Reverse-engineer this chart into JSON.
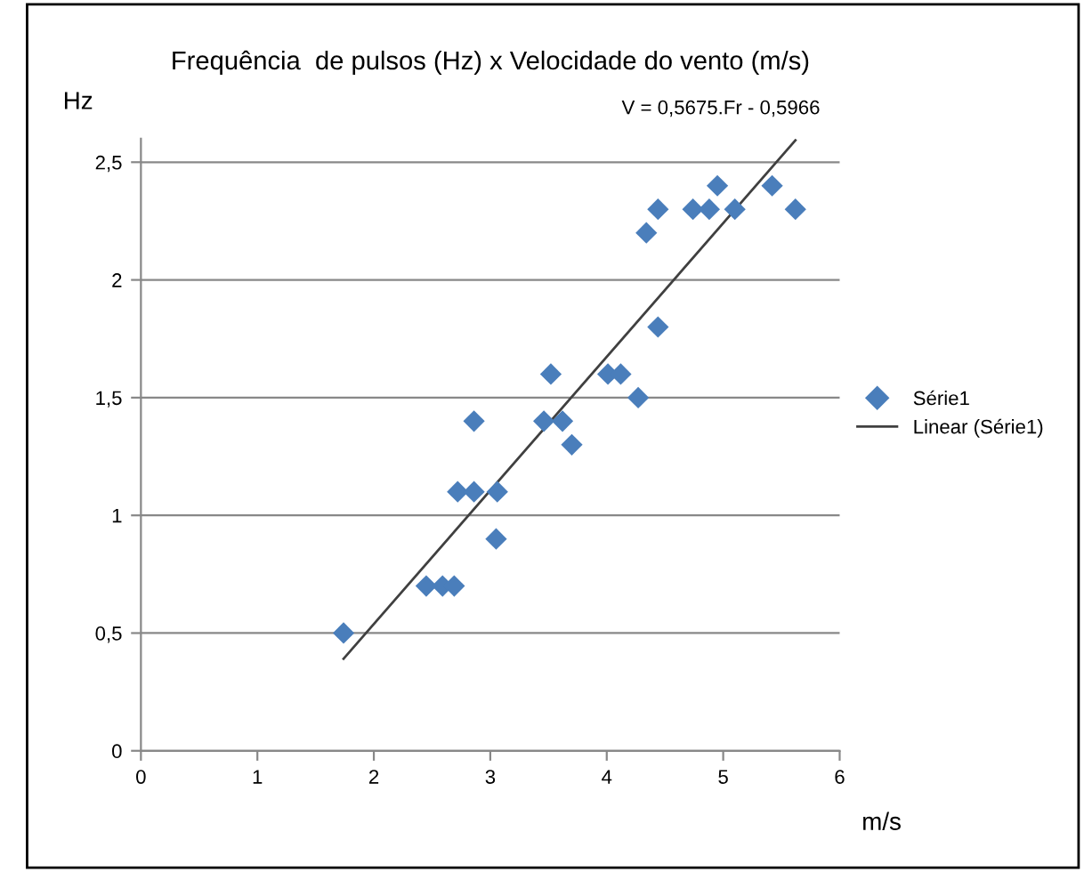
{
  "chart_data": {
    "type": "scatter",
    "title": "Frequência  de pulsos (Hz) x Velocidade do vento (m/s)",
    "xlabel": "m/s",
    "ylabel": "Hz",
    "annotations": [
      "V = 0,5675.Fr - 0,5966"
    ],
    "series": [
      {
        "name": "Série1",
        "color": "#4a7ebb",
        "marker": "diamond",
        "x": [
          1.74,
          2.45,
          2.59,
          2.69,
          2.72,
          2.86,
          2.86,
          3.06,
          3.05,
          3.46,
          3.52,
          3.62,
          3.7,
          4.01,
          4.12,
          4.27,
          4.34,
          4.44,
          4.44,
          4.74,
          4.88,
          4.95,
          5.1,
          5.42,
          5.62
        ],
        "values": [
          0.5,
          0.7,
          0.7,
          0.7,
          1.1,
          1.1,
          1.4,
          1.1,
          0.9,
          1.4,
          1.6,
          1.4,
          1.3,
          1.6,
          1.6,
          1.5,
          2.2,
          2.3,
          1.8,
          2.3,
          2.3,
          2.4,
          2.3,
          2.4,
          2.3
        ]
      },
      {
        "name": "Linear (Série1)",
        "type": "line",
        "color": "#404040",
        "line_style": "solid",
        "x": [
          1.74,
          5.62
        ],
        "values": [
          0.391,
          2.593
        ]
      }
    ],
    "xlim": [
      0,
      6
    ],
    "ylim": [
      0,
      2.6
    ],
    "xticks": [
      0,
      1,
      2,
      3,
      4,
      5,
      6
    ],
    "yticks": [
      0,
      {
        "value": 0.5,
        "label": "0,5"
      },
      1,
      {
        "value": 1.5,
        "label": "1,5"
      },
      2,
      {
        "value": 2.5,
        "label": "2,5"
      }
    ],
    "grid": "y",
    "legend": "right"
  }
}
